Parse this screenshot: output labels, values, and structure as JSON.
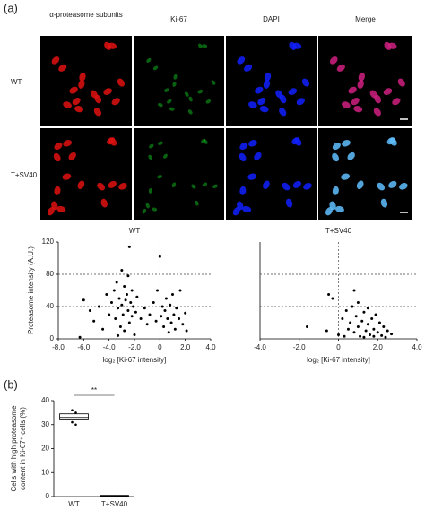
{
  "panel_a": {
    "label": "(a)",
    "columns": [
      "α-proteasome subunits",
      "Ki-67",
      "DAPI",
      "Merge"
    ],
    "rows": [
      "WT",
      "T+SV40"
    ]
  },
  "panel_b": {
    "label": "(b)"
  },
  "chart_data": [
    {
      "type": "scatter",
      "title": "WT",
      "x_label": "log₂ [Ki-67 intensity]",
      "y_label": "Proteasome intensity (A.U.)",
      "color": "#000000",
      "x": [
        -6.3,
        -6,
        -5.5,
        -5.2,
        -4.8,
        -4.5,
        -4.2,
        -4,
        -3.8,
        -3.6,
        -3.5,
        -3.4,
        -3.3,
        -3.2,
        -3.1,
        -3,
        -3,
        -2.9,
        -2.8,
        -2.8,
        -2.7,
        -2.6,
        -2.5,
        -2.5,
        -2.4,
        -2.4,
        -2.3,
        -2.2,
        -2.2,
        -2.1,
        -2,
        -1.9,
        -1.8,
        -1.5,
        -1.2,
        -1,
        -0.8,
        -0.5,
        -0.3,
        -0.2,
        0,
        0.1,
        0.2,
        0.3,
        0.4,
        0.5,
        0.6,
        0.7,
        0.8,
        0.9,
        1,
        1.1,
        1.2,
        1.3,
        1.5,
        1.6,
        1.8,
        2,
        2.1,
        -3.3
      ],
      "values": [
        2,
        48,
        35,
        22,
        40,
        12,
        55,
        30,
        45,
        60,
        25,
        70,
        38,
        50,
        15,
        85,
        42,
        30,
        65,
        10,
        48,
        55,
        78,
        35,
        114,
        20,
        45,
        60,
        28,
        40,
        5,
        33,
        52,
        25,
        38,
        18,
        30,
        45,
        22,
        60,
        102,
        28,
        40,
        15,
        35,
        50,
        25,
        8,
        42,
        20,
        55,
        30,
        12,
        38,
        25,
        60,
        18,
        32,
        10,
        4
      ],
      "xlim": [
        -8,
        4
      ],
      "xticks": [
        {
          "value": -8,
          "label": "-8.0"
        },
        {
          "value": -6,
          "label": "-6.0"
        },
        {
          "value": -4,
          "label": "-4.0"
        },
        {
          "value": -2,
          "label": "-2.0"
        },
        0,
        {
          "value": 2,
          "label": "2.0"
        },
        {
          "value": 4,
          "label": "4.0"
        }
      ],
      "ylim": [
        0,
        120
      ],
      "yticks": [
        0,
        40,
        80,
        120
      ],
      "vlines": [
        0
      ],
      "hlines": [
        40,
        80
      ]
    },
    {
      "type": "scatter",
      "title": "T+SV40",
      "x_label": "log₂ [Ki-67 intensity]",
      "color": "#000000",
      "x": [
        -1.6,
        -0.6,
        -0.5,
        -0.3,
        0,
        0.2,
        0.3,
        0.4,
        0.5,
        0.6,
        0.7,
        0.8,
        0.9,
        1,
        1,
        1.1,
        1.2,
        1.3,
        1.4,
        1.5,
        1.5,
        1.6,
        1.7,
        1.8,
        1.9,
        2,
        2.1,
        2.2,
        2.3,
        2.5,
        2.7,
        0.8,
        1.3,
        1.8,
        2.4
      ],
      "values": [
        15,
        10,
        55,
        50,
        5,
        25,
        3,
        35,
        12,
        20,
        40,
        8,
        28,
        15,
        45,
        3,
        22,
        33,
        10,
        18,
        38,
        5,
        25,
        12,
        30,
        8,
        20,
        4,
        15,
        10,
        6,
        60,
        2,
        3,
        2
      ],
      "xlim": [
        -4,
        4
      ],
      "xticks": [
        {
          "value": -4,
          "label": "-4.0"
        },
        {
          "value": -2,
          "label": "-2.0"
        },
        0,
        {
          "value": 2,
          "label": "2.0"
        },
        {
          "value": 4,
          "label": "4.0"
        }
      ],
      "ylim": [
        0,
        120
      ],
      "vlines": [
        0
      ],
      "hlines": [
        40,
        80
      ]
    },
    {
      "type": "box",
      "categories": [
        "WT",
        "T+SV40"
      ],
      "y_label": [
        "Cells with high proteasome",
        "content in Ki-67⁺ cells (%)"
      ],
      "series": [
        {
          "min": 30,
          "q1": 32,
          "median": 33,
          "q3": 34.5,
          "max": 36,
          "points": [
            36,
            35,
            31,
            30
          ]
        },
        {
          "min": 0,
          "q1": 0.1,
          "median": 0.3,
          "q3": 0.5,
          "max": 0.6,
          "points": []
        }
      ],
      "ylim": [
        0,
        40
      ],
      "yticks": [
        0,
        10,
        20,
        30,
        40
      ],
      "annotation": "**"
    }
  ]
}
